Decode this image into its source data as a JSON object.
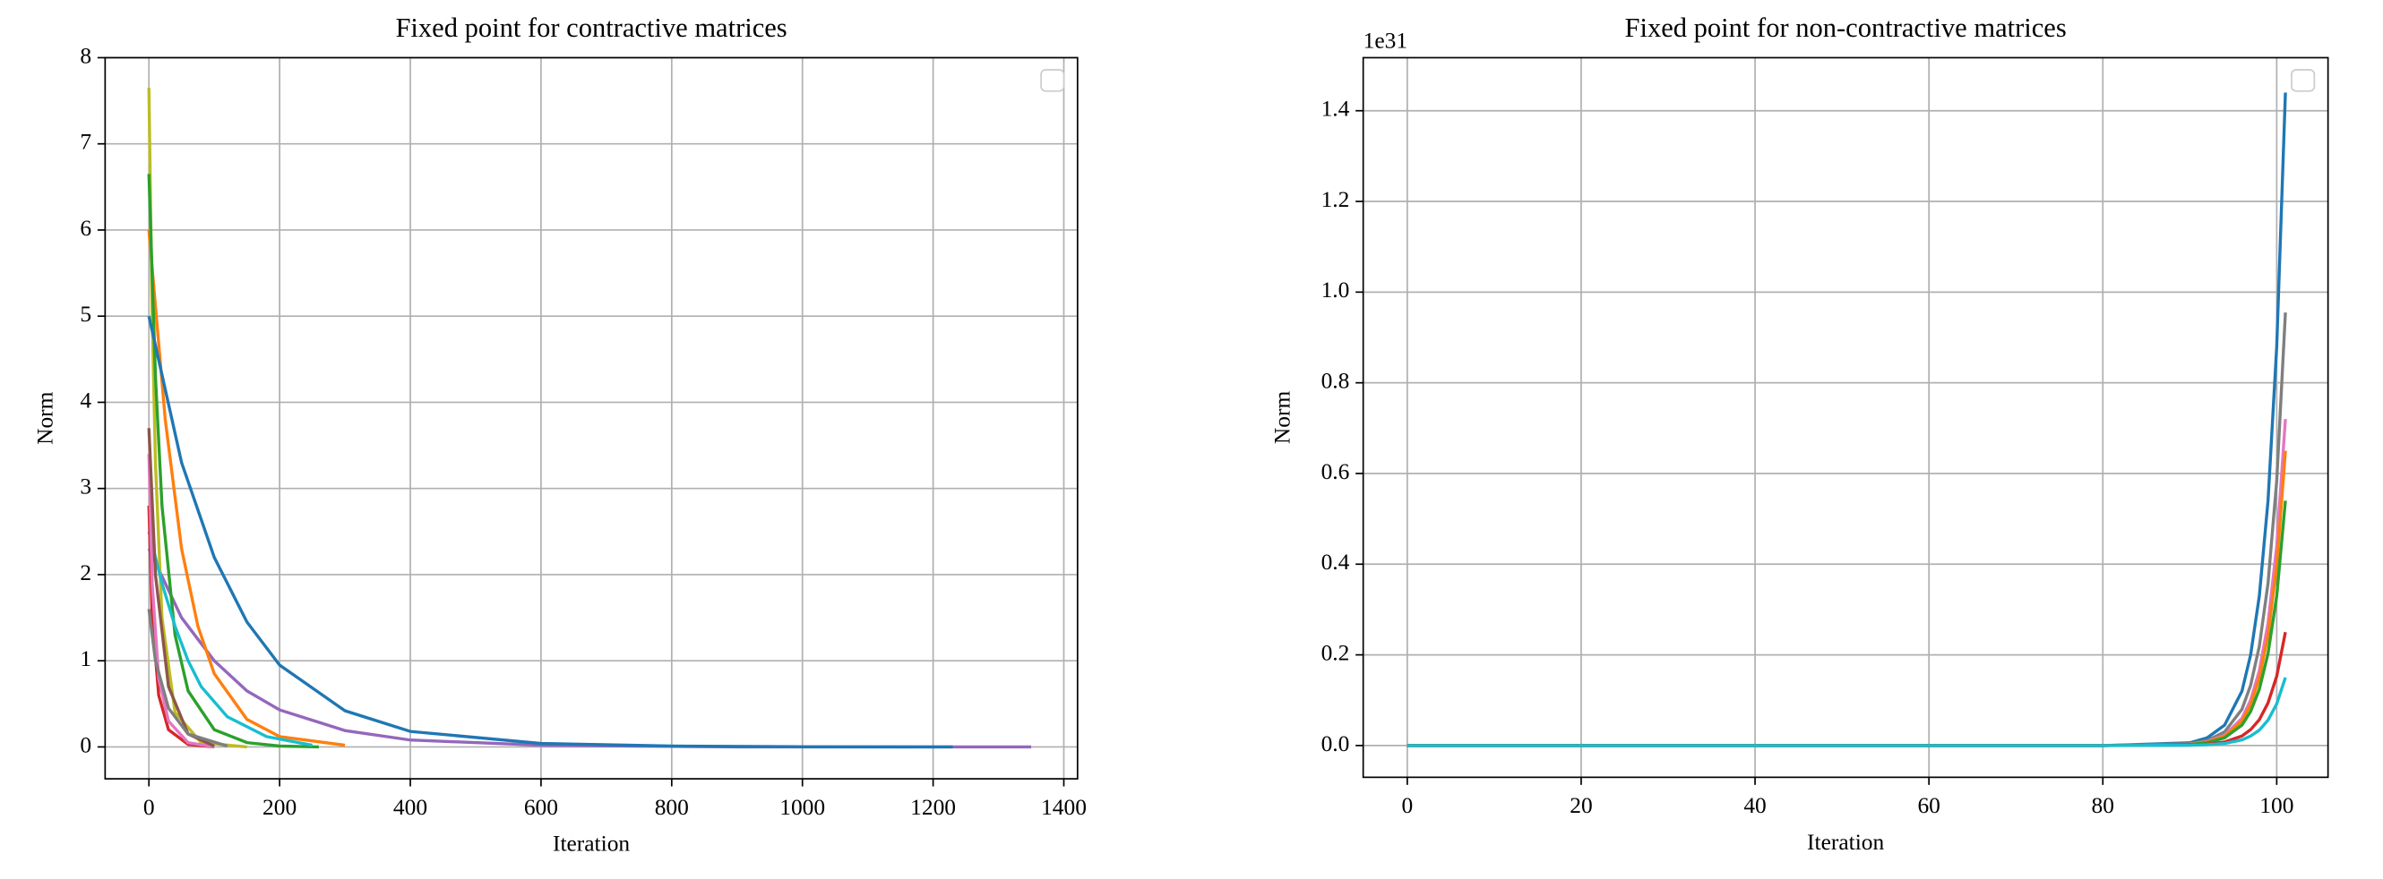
{
  "chart_data": [
    {
      "type": "line",
      "title": "Fixed point for contractive matrices",
      "xlabel": "Iteration",
      "ylabel": "Norm",
      "xlim": [
        -67,
        1421
      ],
      "ylim": [
        -0.37,
        8.0
      ],
      "xticks": [
        0,
        200,
        400,
        600,
        800,
        1000,
        1200,
        1400
      ],
      "yticks": [
        0,
        1,
        2,
        3,
        4,
        5,
        6,
        7,
        8
      ],
      "grid": true,
      "legend": "upper right",
      "series": [
        {
          "color": "#9467bd",
          "x": [
            0,
            50,
            100,
            150,
            200,
            300,
            400,
            600,
            900,
            1200,
            1350
          ],
          "values": [
            2.3,
            1.5,
            1.0,
            0.65,
            0.43,
            0.19,
            0.08,
            0.02,
            0,
            0,
            0
          ]
        },
        {
          "color": "#ff7f0e",
          "x": [
            0,
            25,
            50,
            75,
            100,
            150,
            200,
            300
          ],
          "values": [
            6.0,
            3.8,
            2.3,
            1.4,
            0.85,
            0.32,
            0.12,
            0.02
          ]
        },
        {
          "color": "#bcbd22",
          "x": [
            0,
            5,
            10,
            20,
            40,
            80,
            150
          ],
          "values": [
            7.65,
            5.0,
            3.3,
            1.5,
            0.4,
            0.05,
            0
          ]
        },
        {
          "color": "#2ca02c",
          "x": [
            0,
            10,
            20,
            40,
            60,
            100,
            150,
            200,
            260
          ],
          "values": [
            6.65,
            4.3,
            2.8,
            1.3,
            0.65,
            0.2,
            0.05,
            0.01,
            0
          ]
        },
        {
          "color": "#17becf",
          "x": [
            0,
            20,
            40,
            60,
            80,
            120,
            180,
            250
          ],
          "values": [
            2.5,
            1.9,
            1.4,
            1.0,
            0.7,
            0.35,
            0.12,
            0.02
          ]
        },
        {
          "color": "#d62728",
          "x": [
            0,
            5,
            15,
            30,
            60,
            100
          ],
          "values": [
            2.8,
            1.5,
            0.6,
            0.2,
            0.03,
            0
          ]
        },
        {
          "color": "#e377c2",
          "x": [
            0,
            5,
            15,
            30,
            60,
            100
          ],
          "values": [
            3.4,
            1.9,
            0.8,
            0.3,
            0.05,
            0
          ]
        },
        {
          "color": "#8c564b",
          "x": [
            0,
            10,
            30,
            60,
            100
          ],
          "values": [
            3.7,
            2.0,
            0.7,
            0.15,
            0.01
          ]
        },
        {
          "color": "#7f7f7f",
          "x": [
            0,
            10,
            30,
            60,
            120
          ],
          "values": [
            1.6,
            1.0,
            0.45,
            0.15,
            0.01
          ]
        },
        {
          "color": "#1f77b4",
          "x": [
            0,
            50,
            100,
            150,
            200,
            300,
            400,
            600,
            800,
            1000,
            1230
          ],
          "values": [
            5.0,
            3.3,
            2.2,
            1.45,
            0.95,
            0.42,
            0.18,
            0.04,
            0.01,
            0.002,
            0
          ]
        }
      ]
    },
    {
      "type": "line",
      "title": "Fixed point for non-contractive matrices",
      "xlabel": "Iteration",
      "ylabel": "Norm",
      "offset_text": "1e31",
      "xlim": [
        -5.07,
        105.9
      ],
      "ylim": [
        -0.07,
        1.517
      ],
      "xticks": [
        0,
        20,
        40,
        60,
        80,
        100
      ],
      "yticks": [
        {
          "value": 0,
          "label": "0.0"
        },
        {
          "value": 0.2,
          "label": "0.2"
        },
        {
          "value": 0.4,
          "label": "0.4"
        },
        {
          "value": 0.6,
          "label": "0.6"
        },
        {
          "value": 0.8,
          "label": "0.8"
        },
        {
          "value": 1.0,
          "label": "1.0"
        },
        {
          "value": 1.2,
          "label": "1.2"
        },
        {
          "value": 1.4,
          "label": "1.4"
        }
      ],
      "grid": true,
      "legend": "upper right",
      "x": [
        0,
        80,
        90,
        92,
        94,
        96,
        97,
        98,
        99,
        100,
        101
      ],
      "series": [
        {
          "color": "#1f77b4",
          "values": [
            0,
            0,
            0.006,
            0.017,
            0.045,
            0.12,
            0.2,
            0.33,
            0.54,
            0.88,
            1.44
          ]
        },
        {
          "color": "#7f7f7f",
          "values": [
            0,
            0,
            0.004,
            0.011,
            0.03,
            0.08,
            0.133,
            0.219,
            0.358,
            0.584,
            0.955
          ]
        },
        {
          "color": "#e377c2",
          "values": [
            0,
            0,
            0.003,
            0.0085,
            0.0225,
            0.06,
            0.1,
            0.165,
            0.27,
            0.44,
            0.72
          ]
        },
        {
          "color": "#ff7f0e",
          "values": [
            0,
            0,
            0.0027,
            0.0077,
            0.0203,
            0.054,
            0.09,
            0.149,
            0.244,
            0.397,
            0.65
          ]
        },
        {
          "color": "#2ca02c",
          "values": [
            0,
            0,
            0.0023,
            0.0064,
            0.0169,
            0.045,
            0.075,
            0.124,
            0.203,
            0.33,
            0.54
          ]
        },
        {
          "color": "#d62728",
          "values": [
            0,
            0,
            0.001,
            0.003,
            0.0078,
            0.021,
            0.035,
            0.057,
            0.094,
            0.153,
            0.25
          ]
        },
        {
          "color": "#17becf",
          "values": [
            0,
            0,
            0.0006,
            0.0018,
            0.0047,
            0.0125,
            0.021,
            0.034,
            0.056,
            0.092,
            0.15
          ]
        }
      ]
    }
  ]
}
